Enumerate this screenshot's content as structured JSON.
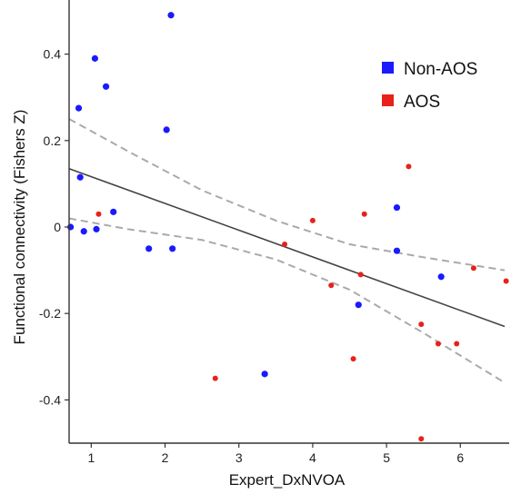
{
  "chart_data": {
    "type": "scatter",
    "title": "",
    "xlabel": "Expert_DxNVOA",
    "ylabel": "Functional connectivity (Fishers Z)",
    "xlim": [
      0.7,
      6.6
    ],
    "ylim": [
      -0.5,
      0.5
    ],
    "x_ticks": [
      1,
      2,
      3,
      4,
      5,
      6
    ],
    "y_ticks": [
      0.4,
      0.2,
      0,
      -0.2,
      -0.4
    ],
    "x_tick_labels": [
      "1",
      "2",
      "3",
      "4",
      "5",
      "6"
    ],
    "y_tick_labels": [
      "0.4",
      "0.2",
      "0",
      "-0.2",
      "-0.4"
    ],
    "grid": false,
    "legend": {
      "position": "top-right"
    },
    "series": [
      {
        "name": "Non-AOS",
        "color": "#1a1aff",
        "points": [
          [
            0.72,
            0.0
          ],
          [
            0.83,
            0.275
          ],
          [
            0.85,
            0.115
          ],
          [
            0.9,
            -0.01
          ],
          [
            1.05,
            0.39
          ],
          [
            1.07,
            -0.005
          ],
          [
            1.2,
            0.325
          ],
          [
            1.3,
            0.035
          ],
          [
            1.78,
            -0.05
          ],
          [
            2.02,
            0.225
          ],
          [
            2.08,
            0.49
          ],
          [
            2.1,
            -0.05
          ],
          [
            3.35,
            -0.34
          ],
          [
            4.62,
            -0.18
          ],
          [
            5.14,
            0.045
          ],
          [
            5.14,
            -0.055
          ],
          [
            5.74,
            -0.115
          ]
        ]
      },
      {
        "name": "AOS",
        "color": "#e8211b",
        "points": [
          [
            1.1,
            0.03
          ],
          [
            2.68,
            -0.35
          ],
          [
            3.62,
            -0.04
          ],
          [
            4.0,
            0.015
          ],
          [
            4.25,
            -0.135
          ],
          [
            4.55,
            -0.305
          ],
          [
            4.65,
            -0.11
          ],
          [
            4.7,
            0.03
          ],
          [
            5.3,
            0.14
          ],
          [
            5.47,
            -0.225
          ],
          [
            5.47,
            -0.49
          ],
          [
            5.7,
            -0.27
          ],
          [
            5.95,
            -0.27
          ],
          [
            6.18,
            -0.095
          ],
          [
            6.62,
            -0.125
          ]
        ]
      }
    ],
    "fit_line": {
      "x": [
        0.7,
        6.6
      ],
      "y": [
        0.135,
        -0.23
      ],
      "color": "#444444"
    },
    "confidence_band": {
      "color": "#aaaaaa",
      "x": [
        0.7,
        1.5,
        2.5,
        3.5,
        4.5,
        5.5,
        6.6
      ],
      "upper": [
        0.25,
        0.175,
        0.085,
        0.015,
        -0.04,
        -0.07,
        -0.1
      ],
      "lower": [
        0.02,
        -0.005,
        -0.03,
        -0.075,
        -0.145,
        -0.245,
        -0.36
      ]
    }
  }
}
